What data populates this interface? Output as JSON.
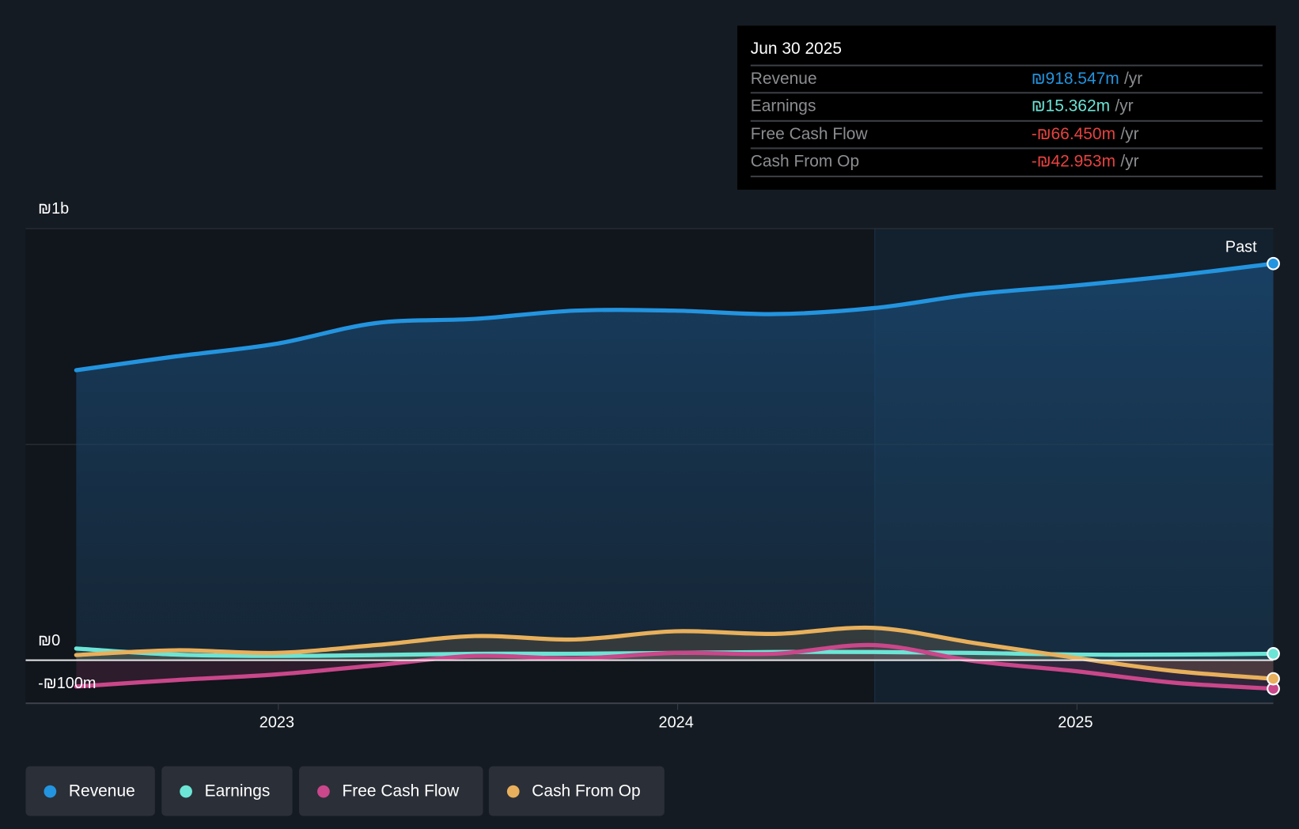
{
  "tooltip": {
    "date": "Jun 30 2025",
    "rows": [
      {
        "label": "Revenue",
        "value": "₪918.547m",
        "unit": "/yr",
        "color": "#2394df"
      },
      {
        "label": "Earnings",
        "value": "₪15.362m",
        "unit": "/yr",
        "color": "#6ce5d6"
      },
      {
        "label": "Free Cash Flow",
        "value": "-₪66.450m",
        "unit": "/yr",
        "color": "#e8423f"
      },
      {
        "label": "Cash From Op",
        "value": "-₪42.953m",
        "unit": "/yr",
        "color": "#e8423f"
      }
    ]
  },
  "chart_data": {
    "type": "line",
    "x": [
      "2022-06-30",
      "2022-09-30",
      "2022-12-31",
      "2023-03-31",
      "2023-06-30",
      "2023-09-30",
      "2023-12-31",
      "2024-03-31",
      "2024-06-30",
      "2024-09-30",
      "2024-12-31",
      "2025-03-31",
      "2025-06-30"
    ],
    "series": [
      {
        "name": "Revenue",
        "color": "#2394df",
        "values": [
          672,
          704,
          733,
          781,
          791,
          810,
          810,
          802,
          816,
          848,
          868,
          891,
          919
        ]
      },
      {
        "name": "Earnings",
        "color": "#6ce5d6",
        "values": [
          27,
          13,
          10,
          12,
          15,
          15,
          17,
          19,
          19,
          17,
          13,
          13,
          15
        ]
      },
      {
        "name": "Free Cash Flow",
        "color": "#c9478a",
        "values": [
          -61,
          -46,
          -33,
          -12,
          10,
          4,
          17,
          15,
          35,
          -2,
          -25,
          -52,
          -66
        ]
      },
      {
        "name": "Cash From Op",
        "color": "#e8b05c",
        "values": [
          12,
          23,
          17,
          35,
          56,
          48,
          67,
          61,
          75,
          40,
          6,
          -25,
          -43
        ]
      }
    ],
    "y_unit": "₪m",
    "ylim": [
      -100,
      1000
    ],
    "y_ticks": [
      {
        "value": 1000,
        "label": "₪1b"
      },
      {
        "value": 0,
        "label": "₪0"
      },
      {
        "value": -100,
        "label": "-₪100m"
      }
    ],
    "x_ticks": [
      {
        "value": 2023,
        "label": "2023"
      },
      {
        "value": 2024,
        "label": "2024"
      },
      {
        "value": 2025,
        "label": "2025"
      }
    ],
    "annotation": "Past",
    "legend_position": "bottom-left"
  },
  "legend": [
    {
      "label": "Revenue",
      "color": "#2394df"
    },
    {
      "label": "Earnings",
      "color": "#6ce5d6"
    },
    {
      "label": "Free Cash Flow",
      "color": "#c9478a"
    },
    {
      "label": "Cash From Op",
      "color": "#e8b05c"
    }
  ]
}
